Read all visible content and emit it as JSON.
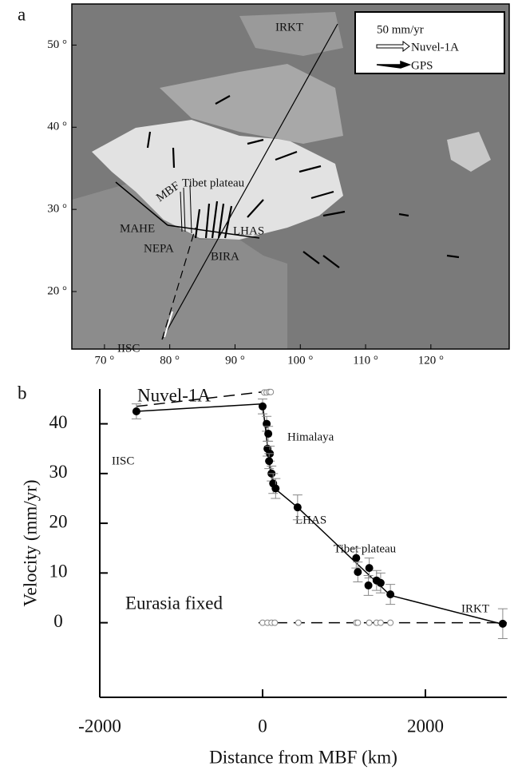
{
  "chart_data": [
    {
      "type": "map",
      "panel_label": "a",
      "xlim": [
        65,
        132
      ],
      "ylim": [
        13,
        55
      ],
      "xticks": [
        {
          "value": 70,
          "label": "70 °"
        },
        {
          "value": 80,
          "label": "80 °"
        },
        {
          "value": 90,
          "label": "90 °"
        },
        {
          "value": 100,
          "label": "100 °"
        },
        {
          "value": 110,
          "label": "110 °"
        },
        {
          "value": 120,
          "label": "120 °"
        }
      ],
      "yticks": [
        {
          "value": 20,
          "label": "20 °"
        },
        {
          "value": 30,
          "label": "30 °"
        },
        {
          "value": 40,
          "label": "40 °"
        },
        {
          "value": 50,
          "label": "50 °"
        }
      ],
      "legend": {
        "scale": "50 mm/yr",
        "items": [
          "Nuvel-1A",
          "GPS"
        ]
      },
      "annotations": [
        "IRKT",
        "Tibet plateau",
        "MBF",
        "MAHE",
        "NEPA",
        "LHAS",
        "BIRA",
        "IISC"
      ]
    },
    {
      "type": "scatter",
      "panel_label": "b",
      "xlabel": "Distance from MBF (km)",
      "ylabel": "Velocity (mm/yr)",
      "xlim": [
        -2000,
        3000
      ],
      "ylim": [
        -15,
        47
      ],
      "xticks": [
        -2000,
        0,
        2000
      ],
      "yticks": [
        0,
        10,
        20,
        30,
        40
      ],
      "series": [
        {
          "color": "#000000",
          "fill": true,
          "x": [
            -1550,
            0,
            50,
            70,
            60,
            90,
            80,
            110,
            130,
            160,
            430,
            1150,
            1170,
            1310,
            1300,
            1400,
            1450,
            1570,
            2950
          ],
          "values": [
            42.5,
            43.5,
            40,
            38,
            35,
            34,
            32.5,
            30,
            28,
            27,
            23.2,
            13,
            10.2,
            11,
            7.5,
            8.5,
            8,
            5.7,
            -0.2
          ],
          "errors": [
            1.5,
            1.5,
            1.5,
            1.5,
            1.5,
            1.5,
            1.5,
            1.5,
            2,
            2,
            2.5,
            2,
            2,
            2,
            2,
            2,
            2,
            2,
            3
          ]
        },
        {
          "name": "Nuvel-1A",
          "color": "#888888",
          "fill": false,
          "x": [
            20,
            50,
            80,
            100
          ],
          "values": [
            46.3,
            46.3,
            46.4,
            46.4
          ]
        },
        {
          "name": "Eurasia fixed",
          "color": "#888888",
          "fill": false,
          "x": [
            0,
            60,
            110,
            150,
            440,
            1150,
            1170,
            1310,
            1400,
            1450,
            1570
          ],
          "values": [
            0,
            0,
            0,
            0,
            0,
            0,
            0,
            0,
            0,
            0,
            0
          ]
        }
      ],
      "lines": [
        {
          "style": "solid",
          "x": [
            -1550,
            0,
            100,
            150,
            430,
            1570,
            2950
          ],
          "values": [
            42.5,
            44,
            30,
            27,
            23.2,
            5.5,
            -0.3
          ]
        },
        {
          "style": "dashed",
          "x": [
            -1550,
            100
          ],
          "values": [
            43.5,
            46.6
          ]
        },
        {
          "style": "dashed",
          "x": [
            -50,
            3000
          ],
          "values": [
            0,
            0
          ]
        }
      ],
      "annotations": [
        "IISC",
        "Himalaya",
        "LHAS",
        "Tibet plateau",
        "IRKT"
      ]
    }
  ]
}
